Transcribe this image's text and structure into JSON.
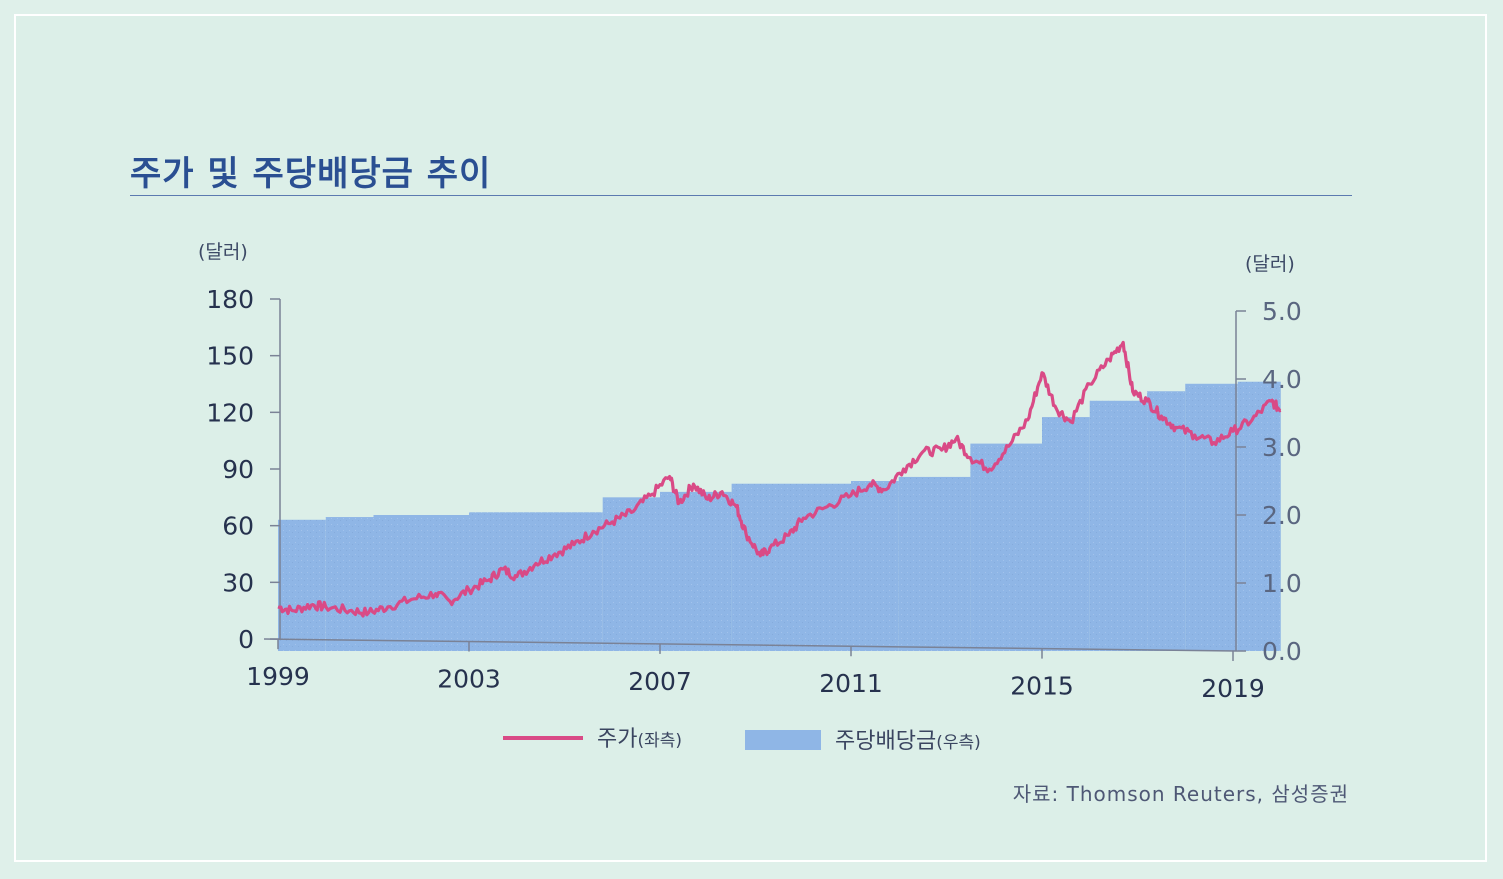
{
  "title": "주가 및 주당배당금 추이",
  "source": "자료: Thomson Reuters, 삼성증권",
  "chart_data": {
    "type": "line+area",
    "title": "주가 및 주당배당금 추이",
    "y_left_unit": "(달러)",
    "y_right_unit": "(달러)",
    "y_left_ticks": [
      "180",
      "150",
      "120",
      "90",
      "60",
      "30",
      "0"
    ],
    "y_right_ticks": [
      "5.0",
      "4.0",
      "3.0",
      "2.0",
      "1.0",
      "0.0"
    ],
    "x_ticks": [
      "1999",
      "2003",
      "2007",
      "2011",
      "2015",
      "2019"
    ],
    "ylim_left": [
      0,
      180
    ],
    "ylim_right": [
      0,
      5
    ],
    "xlim": [
      1999,
      2019
    ],
    "grid": false,
    "legend_position": "bottom",
    "series": [
      {
        "name": "주가",
        "legend_sub": "(좌측)",
        "axis": "left",
        "type": "line",
        "color": "#d94a86",
        "points": [
          [
            1999.0,
            17
          ],
          [
            1999.3,
            15
          ],
          [
            1999.7,
            18
          ],
          [
            2000.0,
            17
          ],
          [
            2000.5,
            15
          ],
          [
            2000.9,
            14
          ],
          [
            2001.3,
            17
          ],
          [
            2001.8,
            21
          ],
          [
            2002.3,
            24
          ],
          [
            2002.6,
            20
          ],
          [
            2003.0,
            26
          ],
          [
            2003.4,
            31
          ],
          [
            2003.7,
            37
          ],
          [
            2004.0,
            33
          ],
          [
            2004.4,
            40
          ],
          [
            2004.8,
            45
          ],
          [
            2005.2,
            50
          ],
          [
            2005.6,
            57
          ],
          [
            2006.0,
            62
          ],
          [
            2006.4,
            67
          ],
          [
            2006.8,
            76
          ],
          [
            2007.2,
            86
          ],
          [
            2007.4,
            72
          ],
          [
            2007.7,
            82
          ],
          [
            2008.0,
            74
          ],
          [
            2008.3,
            78
          ],
          [
            2008.6,
            70
          ],
          [
            2008.8,
            56
          ],
          [
            2009.1,
            44
          ],
          [
            2009.3,
            48
          ],
          [
            2009.7,
            55
          ],
          [
            2010.0,
            64
          ],
          [
            2010.5,
            70
          ],
          [
            2011.0,
            76
          ],
          [
            2011.4,
            82
          ],
          [
            2011.7,
            79
          ],
          [
            2012.1,
            90
          ],
          [
            2012.5,
            99
          ],
          [
            2012.9,
            100
          ],
          [
            2013.2,
            106
          ],
          [
            2013.5,
            96
          ],
          [
            2013.9,
            90
          ],
          [
            2014.3,
            102
          ],
          [
            2014.7,
            116
          ],
          [
            2015.0,
            141
          ],
          [
            2015.3,
            122
          ],
          [
            2015.6,
            115
          ],
          [
            2016.0,
            135
          ],
          [
            2016.4,
            148
          ],
          [
            2016.7,
            157
          ],
          [
            2016.9,
            131
          ],
          [
            2017.2,
            126
          ],
          [
            2017.5,
            118
          ],
          [
            2017.8,
            112
          ],
          [
            2018.2,
            108
          ],
          [
            2018.6,
            104
          ],
          [
            2019.0,
            110
          ],
          [
            2019.4,
            116
          ],
          [
            2019.8,
            126
          ],
          [
            2020.0,
            121
          ]
        ]
      },
      {
        "name": "주당배당금",
        "legend_sub": "(우측)",
        "axis": "right",
        "type": "area-step",
        "color": "#8fb6e6",
        "steps": [
          [
            1999.0,
            1.93
          ],
          [
            2000.0,
            1.97
          ],
          [
            2001.0,
            2.0
          ],
          [
            2003.0,
            2.04
          ],
          [
            2005.8,
            2.26
          ],
          [
            2007.0,
            2.34
          ],
          [
            2008.5,
            2.46
          ],
          [
            2011.0,
            2.5
          ],
          [
            2012.0,
            2.56
          ],
          [
            2013.5,
            3.05
          ],
          [
            2015.0,
            3.44
          ],
          [
            2016.0,
            3.68
          ],
          [
            2017.2,
            3.82
          ],
          [
            2018.0,
            3.93
          ],
          [
            2019.1,
            3.96
          ],
          [
            2020.0,
            4.02
          ]
        ]
      }
    ]
  }
}
